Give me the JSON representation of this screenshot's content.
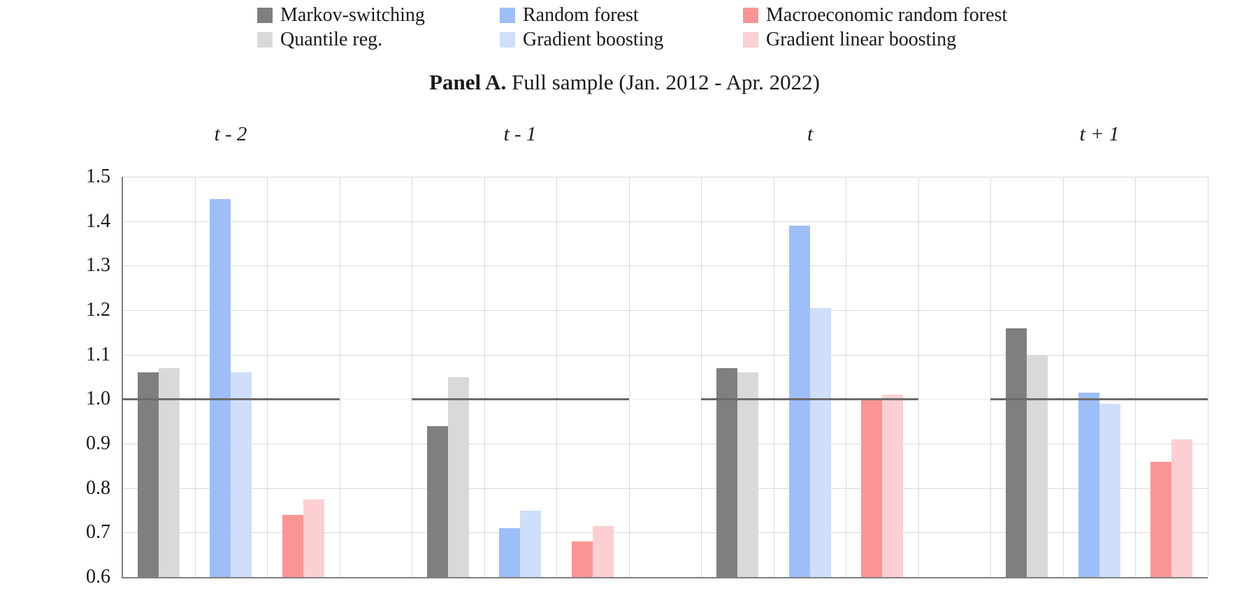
{
  "title": {
    "prefix": "Panel A.",
    "rest": " Full sample (Jan. 2012 - Apr. 2022)"
  },
  "chart_data": {
    "type": "bar",
    "title": "Panel A. Full sample (Jan. 2012 - Apr. 2022)",
    "groups": [
      "t - 2",
      "t - 1",
      "t",
      "t + 1"
    ],
    "series": [
      {
        "name": "Markov-switching",
        "color": "#7f7f7f",
        "values": [
          1.06,
          0.94,
          1.07,
          1.16
        ]
      },
      {
        "name": "Quantile reg.",
        "color": "#d9d9d9",
        "values": [
          1.07,
          1.05,
          1.06,
          1.1
        ]
      },
      {
        "name": "Random forest",
        "color": "#9ebef9",
        "values": [
          1.45,
          0.71,
          1.39,
          1.015
        ]
      },
      {
        "name": "Gradient boosting",
        "color": "#cfdffb",
        "values": [
          1.06,
          0.75,
          1.205,
          0.99
        ]
      },
      {
        "name": "Macroeconomic random forest",
        "color": "#fb9595",
        "values": [
          0.74,
          0.68,
          1.0,
          0.86
        ]
      },
      {
        "name": "Gradient linear boosting",
        "color": "#fccfd2",
        "values": [
          0.775,
          0.715,
          1.01,
          0.91
        ]
      }
    ],
    "ylim": [
      0.6,
      1.5
    ],
    "yticks": [
      0.6,
      0.7,
      0.8,
      0.9,
      1.0,
      1.1,
      1.2,
      1.3,
      1.4,
      1.5
    ],
    "reference_line": 1.0,
    "grid": true,
    "legend_position": "top",
    "legend_rows": 2,
    "legend_columns": 3,
    "colors": {
      "gridline": "#d9d9d9",
      "axis": "#7f7f7f",
      "reference_line": "#6b6b6b",
      "text": "#1a1a1a"
    }
  }
}
